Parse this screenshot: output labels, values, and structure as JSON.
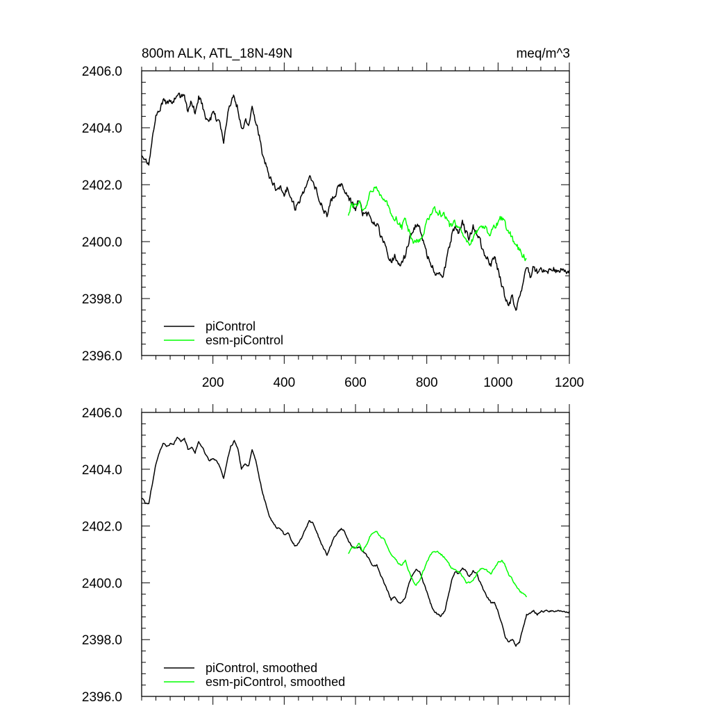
{
  "chart_data": [
    {
      "type": "line",
      "title_left": "800m ALK, ATL_18N-49N",
      "title_right": "meq/m^3",
      "xlabel": "",
      "ylabel": "",
      "xlim": [
        0,
        1200
      ],
      "ylim": [
        2396.0,
        2406.0
      ],
      "x_ticks": [
        200,
        400,
        600,
        800,
        1000,
        1200
      ],
      "x_tick_labels": [
        "200",
        "400",
        "600",
        "800",
        "1000",
        "1200"
      ],
      "y_ticks": [
        2396.0,
        2398.0,
        2400.0,
        2402.0,
        2404.0,
        2406.0
      ],
      "y_tick_labels": [
        "2396.0",
        "2398.0",
        "2400.0",
        "2402.0",
        "2404.0",
        "2406.0"
      ],
      "legend_position": "bottom-left",
      "series": [
        {
          "name": "piControl",
          "color": "#000000",
          "x": [
            0,
            10,
            20,
            30,
            40,
            50,
            60,
            70,
            80,
            90,
            100,
            110,
            120,
            130,
            140,
            150,
            160,
            170,
            180,
            190,
            200,
            210,
            220,
            230,
            240,
            250,
            260,
            270,
            280,
            290,
            300,
            310,
            320,
            330,
            340,
            350,
            360,
            370,
            380,
            390,
            400,
            410,
            420,
            430,
            440,
            450,
            460,
            470,
            480,
            490,
            500,
            510,
            520,
            530,
            540,
            550,
            560,
            570,
            580,
            590,
            600,
            610,
            620,
            630,
            640,
            650,
            660,
            670,
            680,
            690,
            700,
            710,
            720,
            730,
            740,
            750,
            760,
            770,
            780,
            790,
            800,
            810,
            820,
            830,
            840,
            850,
            860,
            870,
            880,
            890,
            900,
            910,
            920,
            930,
            940,
            950,
            960,
            970,
            980,
            990,
            1000,
            1010,
            1020,
            1030,
            1040,
            1050,
            1060,
            1070,
            1080,
            1090,
            1100,
            1110,
            1120,
            1130,
            1140,
            1150,
            1160,
            1170,
            1180,
            1190,
            1200
          ],
          "values": [
            2403.1,
            2402.8,
            2402.8,
            2403.6,
            2404.3,
            2404.5,
            2404.9,
            2404.8,
            2405.0,
            2404.9,
            2405.2,
            2405.0,
            2405.2,
            2404.6,
            2404.9,
            2404.5,
            2405.1,
            2404.8,
            2404.4,
            2404.3,
            2404.5,
            2404.3,
            2404.1,
            2403.6,
            2404.4,
            2404.9,
            2405.1,
            2404.7,
            2403.9,
            2404.3,
            2404.0,
            2404.9,
            2404.3,
            2403.7,
            2403.0,
            2402.6,
            2402.2,
            2402.1,
            2401.8,
            2401.9,
            2401.6,
            2401.9,
            2401.5,
            2401.2,
            2401.4,
            2401.6,
            2402.0,
            2402.3,
            2402.1,
            2401.8,
            2401.5,
            2401.2,
            2400.9,
            2401.4,
            2401.6,
            2401.9,
            2402.0,
            2401.8,
            2401.5,
            2401.3,
            2401.2,
            2401.4,
            2401.0,
            2401.1,
            2400.8,
            2400.5,
            2400.6,
            2400.2,
            2399.9,
            2399.6,
            2399.3,
            2399.5,
            2399.3,
            2399.2,
            2399.5,
            2400.0,
            2400.4,
            2400.6,
            2400.4,
            2400.0,
            2399.6,
            2399.3,
            2399.0,
            2398.8,
            2398.7,
            2399.0,
            2399.6,
            2400.2,
            2400.5,
            2400.3,
            2400.6,
            2400.4,
            2400.1,
            2400.5,
            2400.3,
            2400.0,
            2399.6,
            2399.5,
            2399.2,
            2399.4,
            2399.0,
            2398.5,
            2398.0,
            2397.8,
            2398.1,
            2397.7,
            2397.9,
            2398.5,
            2399.0,
            2398.8,
            2399.1,
            2398.9,
            2399.0,
            2399.0,
            2399.0,
            2399.0,
            2399.0,
            2399.0,
            2399.0,
            2399.0,
            2399.0
          ]
        },
        {
          "name": "esm-piControl",
          "color": "#00ff00",
          "x": [
            580,
            590,
            600,
            610,
            620,
            630,
            640,
            650,
            660,
            670,
            680,
            690,
            700,
            710,
            720,
            730,
            740,
            750,
            760,
            770,
            780,
            790,
            800,
            810,
            820,
            830,
            840,
            850,
            860,
            870,
            880,
            890,
            900,
            910,
            920,
            930,
            940,
            950,
            960,
            970,
            980,
            990,
            1000,
            1010,
            1020,
            1030,
            1040,
            1050,
            1060,
            1070,
            1080
          ],
          "values": [
            2401.0,
            2401.3,
            2401.2,
            2401.5,
            2401.0,
            2401.3,
            2401.6,
            2401.8,
            2401.9,
            2401.6,
            2401.5,
            2401.3,
            2401.0,
            2400.9,
            2400.7,
            2400.5,
            2400.9,
            2400.4,
            2400.0,
            2399.9,
            2400.1,
            2400.4,
            2400.7,
            2401.0,
            2401.2,
            2401.1,
            2401.0,
            2400.9,
            2400.6,
            2400.5,
            2400.6,
            2400.4,
            2400.2,
            2400.0,
            2400.0,
            2400.1,
            2400.3,
            2400.5,
            2400.6,
            2400.4,
            2400.3,
            2400.6,
            2400.7,
            2400.8,
            2400.6,
            2400.3,
            2400.1,
            2399.9,
            2399.7,
            2399.5,
            2399.4
          ]
        }
      ],
      "noise_amplitude": 0.22,
      "noise_seed": 7
    },
    {
      "type": "line",
      "title_left": "",
      "title_right": "",
      "xlabel": "",
      "ylabel": "",
      "xlim": [
        0,
        1200
      ],
      "ylim": [
        2396.0,
        2406.0
      ],
      "x_ticks": [
        200,
        400,
        600,
        800,
        1000,
        1200
      ],
      "x_tick_labels": [],
      "y_ticks": [
        2396.0,
        2398.0,
        2400.0,
        2402.0,
        2404.0,
        2406.0
      ],
      "y_tick_labels": [
        "2396.0",
        "2398.0",
        "2400.0",
        "2402.0",
        "2404.0",
        "2406.0"
      ],
      "legend_position": "bottom-left",
      "series": [
        {
          "name": "piControl, smoothed",
          "color": "#000000",
          "x": [
            0,
            10,
            20,
            30,
            40,
            50,
            60,
            70,
            80,
            90,
            100,
            110,
            120,
            130,
            140,
            150,
            160,
            170,
            180,
            190,
            200,
            210,
            220,
            230,
            240,
            250,
            260,
            270,
            280,
            290,
            300,
            310,
            320,
            330,
            340,
            350,
            360,
            370,
            380,
            390,
            400,
            410,
            420,
            430,
            440,
            450,
            460,
            470,
            480,
            490,
            500,
            510,
            520,
            530,
            540,
            550,
            560,
            570,
            580,
            590,
            600,
            610,
            620,
            630,
            640,
            650,
            660,
            670,
            680,
            690,
            700,
            710,
            720,
            730,
            740,
            750,
            760,
            770,
            780,
            790,
            800,
            810,
            820,
            830,
            840,
            850,
            860,
            870,
            880,
            890,
            900,
            910,
            920,
            930,
            940,
            950,
            960,
            970,
            980,
            990,
            1000,
            1010,
            1020,
            1030,
            1040,
            1050,
            1060,
            1070,
            1080,
            1090,
            1100,
            1110,
            1120,
            1130,
            1140,
            1150,
            1160,
            1170,
            1180,
            1190,
            1200
          ],
          "values": [
            2403.0,
            2402.8,
            2402.8,
            2403.5,
            2404.2,
            2404.6,
            2404.9,
            2404.8,
            2404.9,
            2404.9,
            2405.1,
            2405.0,
            2405.1,
            2404.7,
            2404.8,
            2404.6,
            2405.0,
            2404.8,
            2404.5,
            2404.3,
            2404.4,
            2404.3,
            2404.1,
            2403.7,
            2404.3,
            2404.8,
            2405.0,
            2404.7,
            2404.0,
            2404.2,
            2404.1,
            2404.7,
            2404.3,
            2403.7,
            2403.1,
            2402.7,
            2402.3,
            2402.1,
            2401.9,
            2401.9,
            2401.7,
            2401.8,
            2401.5,
            2401.3,
            2401.4,
            2401.6,
            2401.9,
            2402.2,
            2402.1,
            2401.8,
            2401.5,
            2401.2,
            2401.0,
            2401.3,
            2401.6,
            2401.8,
            2401.9,
            2401.8,
            2401.5,
            2401.3,
            2401.2,
            2401.3,
            2401.1,
            2401.0,
            2400.8,
            2400.6,
            2400.6,
            2400.3,
            2400.0,
            2399.7,
            2399.4,
            2399.5,
            2399.3,
            2399.3,
            2399.5,
            2400.0,
            2400.3,
            2400.5,
            2400.4,
            2400.0,
            2399.7,
            2399.3,
            2399.0,
            2398.9,
            2398.8,
            2399.0,
            2399.5,
            2400.1,
            2400.4,
            2400.3,
            2400.5,
            2400.4,
            2400.2,
            2400.4,
            2400.3,
            2400.0,
            2399.7,
            2399.5,
            2399.3,
            2399.3,
            2399.0,
            2398.6,
            2398.1,
            2397.9,
            2398.0,
            2397.8,
            2397.9,
            2398.4,
            2398.9,
            2398.9,
            2399.0,
            2398.9,
            2399.0,
            2399.0,
            2399.0,
            2399.0,
            2399.0,
            2399.0,
            2399.0,
            2399.0,
            2399.0
          ]
        },
        {
          "name": "esm-piControl, smoothed",
          "color": "#00ff00",
          "x": [
            580,
            590,
            600,
            610,
            620,
            630,
            640,
            650,
            660,
            670,
            680,
            690,
            700,
            710,
            720,
            730,
            740,
            750,
            760,
            770,
            780,
            790,
            800,
            810,
            820,
            830,
            840,
            850,
            860,
            870,
            880,
            890,
            900,
            910,
            920,
            930,
            940,
            950,
            960,
            970,
            980,
            990,
            1000,
            1010,
            1020,
            1030,
            1040,
            1050,
            1060,
            1070,
            1080
          ],
          "values": [
            2401.0,
            2401.3,
            2401.2,
            2401.4,
            2401.1,
            2401.3,
            2401.6,
            2401.8,
            2401.8,
            2401.6,
            2401.5,
            2401.3,
            2401.0,
            2400.9,
            2400.7,
            2400.6,
            2400.8,
            2400.4,
            2400.1,
            2399.9,
            2400.1,
            2400.4,
            2400.7,
            2401.0,
            2401.1,
            2401.1,
            2401.0,
            2400.9,
            2400.7,
            2400.5,
            2400.5,
            2400.4,
            2400.2,
            2400.0,
            2400.0,
            2400.1,
            2400.3,
            2400.5,
            2400.5,
            2400.4,
            2400.3,
            2400.5,
            2400.7,
            2400.8,
            2400.6,
            2400.3,
            2400.1,
            2399.9,
            2399.7,
            2399.6,
            2399.5
          ]
        }
      ],
      "noise_amplitude": 0.06,
      "noise_seed": 11
    }
  ]
}
